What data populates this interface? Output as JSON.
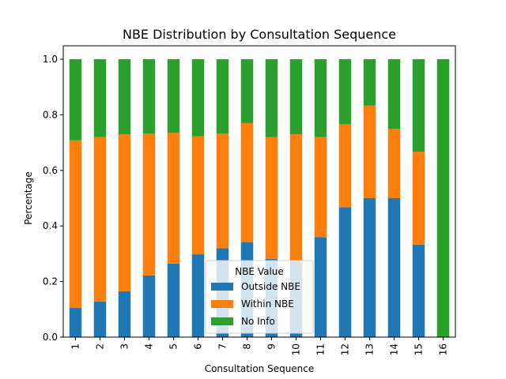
{
  "chart_data": {
    "type": "bar",
    "stacked": true,
    "title": "NBE Distribution by Consultation Sequence",
    "xlabel": "Consultation Sequence",
    "ylabel": "Percentage",
    "ylim": [
      0,
      1.0
    ],
    "yticks": [
      "0.0",
      "0.2",
      "0.4",
      "0.6",
      "0.8",
      "1.0"
    ],
    "categories": [
      "1",
      "2",
      "3",
      "4",
      "5",
      "6",
      "7",
      "8",
      "9",
      "10",
      "11",
      "12",
      "13",
      "14",
      "15",
      "16"
    ],
    "legend": {
      "title": "NBE Value",
      "placement": "lower-center"
    },
    "grid": false,
    "series": [
      {
        "name": "Outside NBE",
        "color": "#1f77b4",
        "values": [
          0.105,
          0.128,
          0.165,
          0.222,
          0.265,
          0.298,
          0.32,
          0.342,
          0.282,
          0.272,
          0.36,
          0.468,
          0.5,
          0.5,
          0.333,
          0.0
        ]
      },
      {
        "name": "Within NBE",
        "color": "#ff7f0e",
        "values": [
          0.603,
          0.592,
          0.565,
          0.51,
          0.47,
          0.425,
          0.412,
          0.428,
          0.438,
          0.458,
          0.36,
          0.298,
          0.333,
          0.25,
          0.334,
          0.0
        ]
      },
      {
        "name": "No Info",
        "color": "#2ca02c",
        "values": [
          0.292,
          0.28,
          0.27,
          0.268,
          0.265,
          0.277,
          0.268,
          0.23,
          0.28,
          0.27,
          0.28,
          0.234,
          0.167,
          0.25,
          0.333,
          1.0
        ]
      }
    ]
  }
}
